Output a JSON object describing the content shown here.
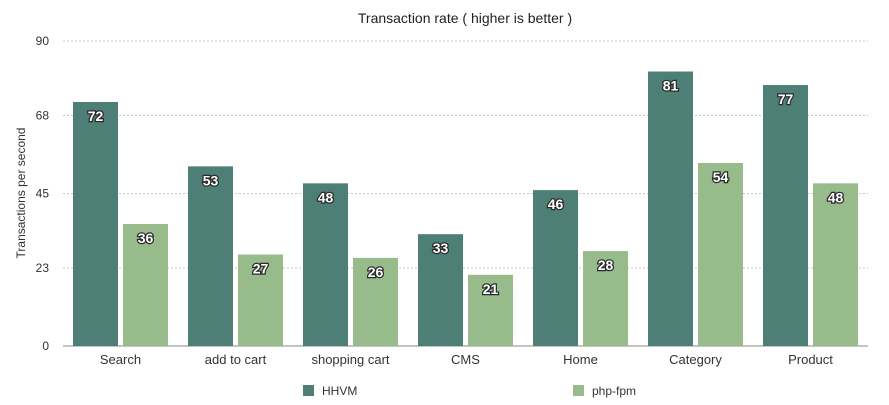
{
  "chart_data": {
    "type": "bar",
    "title": "Transaction rate ( higher is better )",
    "xlabel": "",
    "ylabel": "Transactions per second",
    "ylim": [
      0,
      90
    ],
    "yticks": [
      "0",
      "23",
      "45",
      "68",
      "90"
    ],
    "grid": true,
    "legend_position": "bottom",
    "categories": [
      "Search",
      "add to cart",
      "shopping cart",
      "CMS",
      "Home",
      "Category",
      "Product"
    ],
    "series": [
      {
        "name": "HHVM",
        "color": "#4e7f76",
        "values": [
          72,
          53,
          48,
          33,
          46,
          81,
          77
        ]
      },
      {
        "name": "php-fpm",
        "color": "#97bb8a",
        "values": [
          36,
          27,
          26,
          21,
          28,
          54,
          48
        ]
      }
    ]
  }
}
